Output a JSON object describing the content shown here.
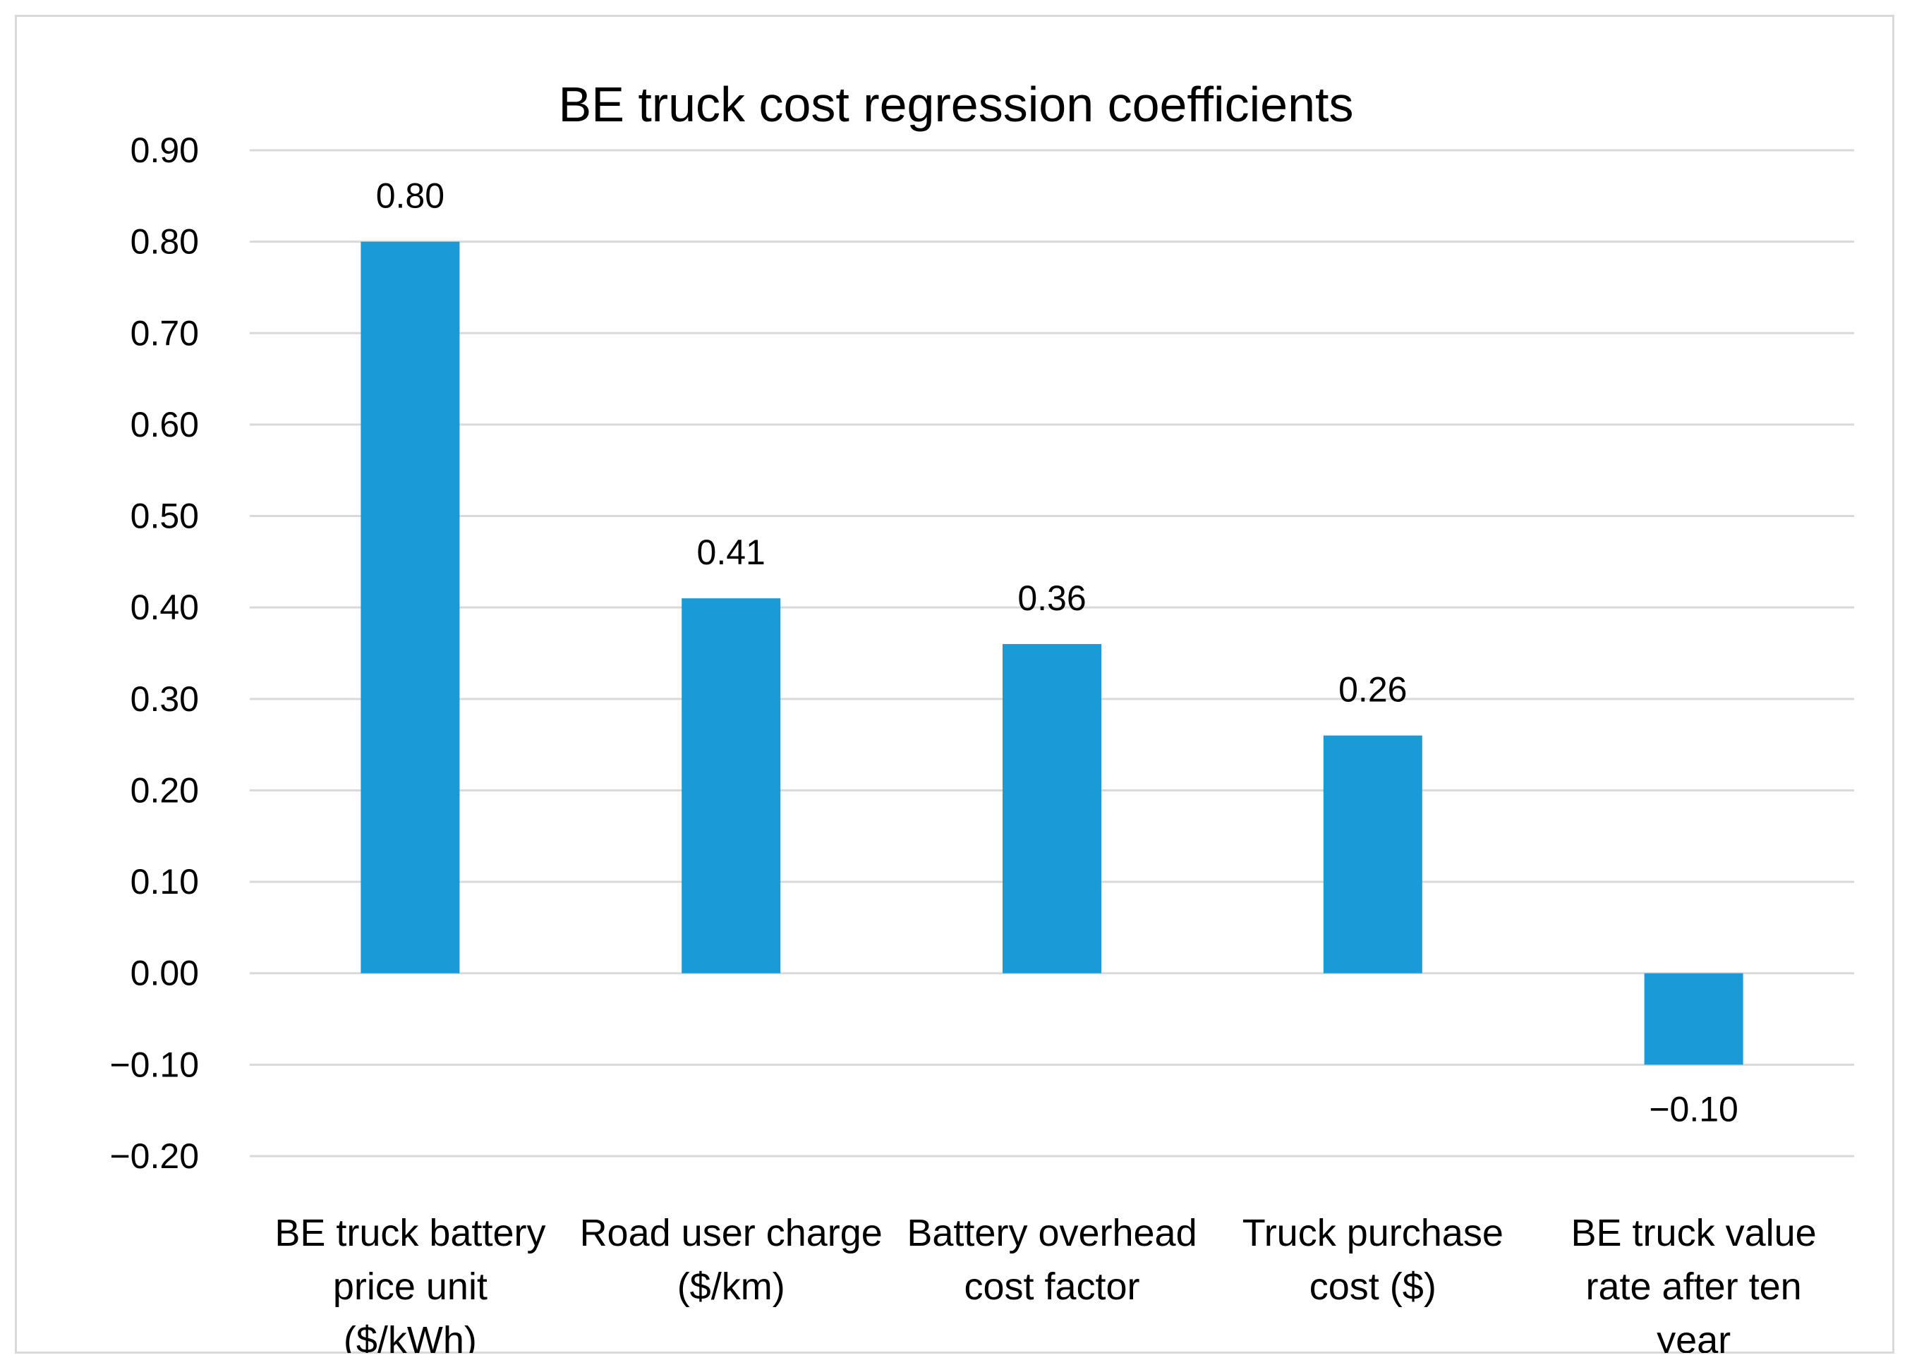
{
  "chart_data": {
    "type": "bar",
    "title": "BE truck cost regression coefficients",
    "xlabel": "",
    "ylabel": "",
    "categories": [
      [
        "BE truck battery",
        "price unit",
        "($/kWh)"
      ],
      [
        "Road user charge",
        "($/km)"
      ],
      [
        "Battery overhead",
        "cost factor"
      ],
      [
        "Truck purchase",
        "cost ($)"
      ],
      [
        "BE truck value",
        "rate after ten",
        "year"
      ]
    ],
    "values": [
      0.8,
      0.41,
      0.36,
      0.26,
      -0.1
    ],
    "data_labels": [
      "0.80",
      "0.41",
      "0.36",
      "0.26",
      "−0.10"
    ],
    "ylim": [
      -0.2,
      0.9
    ],
    "yticks": [
      0.9,
      0.8,
      0.7,
      0.6,
      0.5,
      0.4,
      0.3,
      0.2,
      0.1,
      0.0,
      -0.1,
      -0.2
    ],
    "ytick_labels": [
      "0.90",
      "0.80",
      "0.70",
      "0.60",
      "0.50",
      "0.40",
      "0.30",
      "0.20",
      "0.10",
      "0.00",
      "−0.10",
      "−0.20"
    ],
    "grid": true,
    "legend": "none",
    "bar_color": "#1a9ad6",
    "grid_color": "#d9d9d9"
  }
}
